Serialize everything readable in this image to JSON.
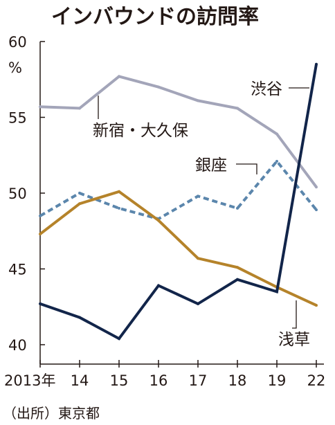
{
  "chart_data": {
    "type": "line",
    "title": "インバウンドの訪問率",
    "ylabel": "%",
    "ylim": [
      40,
      60
    ],
    "yticks": [
      40,
      45,
      50,
      55,
      60
    ],
    "x_tick_labels": [
      "2013年",
      "14",
      "15",
      "16",
      "17",
      "18",
      "19",
      "22"
    ],
    "x": [
      2013,
      2014,
      2015,
      2016,
      2017,
      2018,
      2019,
      2022
    ],
    "series": [
      {
        "name": "新宿・大久保",
        "color": "#a3a5b9",
        "dash": "solid",
        "values": [
          55.7,
          55.6,
          57.7,
          57.0,
          56.1,
          55.6,
          53.9,
          50.4
        ]
      },
      {
        "name": "銀座",
        "color": "#5b86ac",
        "dash": "dashed",
        "values": [
          48.5,
          50.0,
          49.0,
          48.3,
          49.8,
          49.0,
          52.1,
          48.9
        ]
      },
      {
        "name": "浅草",
        "color": "#b5832a",
        "dash": "solid",
        "values": [
          47.3,
          49.3,
          50.1,
          48.2,
          45.7,
          45.1,
          43.8,
          42.6
        ]
      },
      {
        "name": "渋谷",
        "color": "#12254a",
        "dash": "solid",
        "values": [
          42.7,
          41.8,
          40.4,
          43.9,
          42.7,
          44.3,
          43.5,
          58.5
        ]
      }
    ],
    "source": "（出所）東京都"
  }
}
